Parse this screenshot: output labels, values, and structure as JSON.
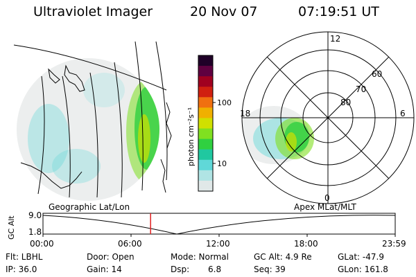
{
  "header": {
    "title": "Ultraviolet Imager",
    "date": "20 Nov 07",
    "time": "07:19:51 UT"
  },
  "colorbar": {
    "unit_label": "photon cm⁻²s⁻¹",
    "tick_labels": [
      "100",
      "10"
    ],
    "colors": [
      "#200028",
      "#600040",
      "#a00020",
      "#d02010",
      "#f07010",
      "#f0b000",
      "#d0e000",
      "#80e020",
      "#30d040",
      "#20c8a0",
      "#60d8d8",
      "#b0e4e4",
      "#e0e8e8"
    ]
  },
  "geo_panel": {
    "label": "Geographic Lat/Lon"
  },
  "polar_panel": {
    "label": "Apex MLat/MLT",
    "lat_labels": [
      "60",
      "70",
      "80"
    ],
    "mlt_labels": [
      "12",
      "18",
      "6",
      "0"
    ]
  },
  "timeline": {
    "ylabel": "GC Alt",
    "y_ticks": [
      "9.0",
      "1.8"
    ],
    "x_ticks": [
      "00:00",
      "06:00",
      "12:00",
      "18:00",
      "23:59"
    ],
    "current_time_hours": 7.33,
    "marker_color": "#e02020"
  },
  "info": {
    "row1": {
      "flt": "Flt: LBHL",
      "door": "Door: Open",
      "mode": "Mode: Normal",
      "gcalt": "GC Alt: 4.9 Re",
      "glat": "GLat: -47.9"
    },
    "row2": {
      "ip": "IP: 36.0",
      "gain": "Gain: 14",
      "dsp_label": "Dsp:",
      "dsp_value": "6.8",
      "seq": "Seq: 39",
      "glon": "GLon: 161.8"
    }
  }
}
